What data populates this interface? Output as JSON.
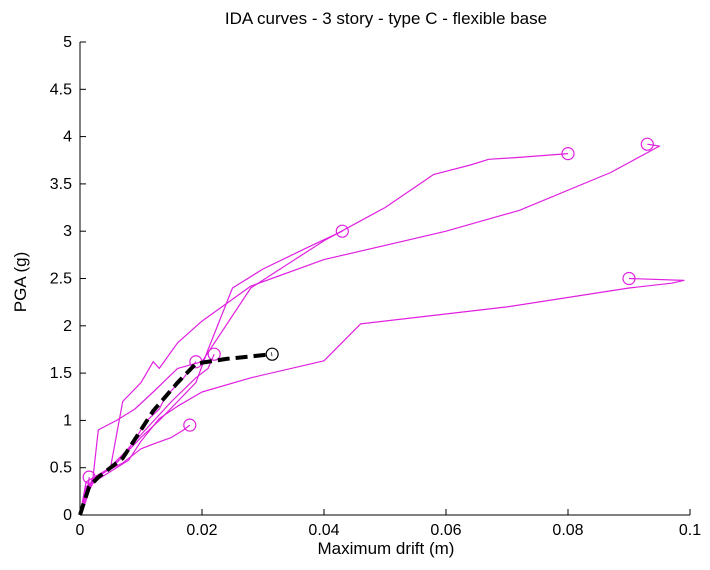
{
  "chart_data": {
    "type": "line",
    "title": "IDA curves - 3 story - type C - flexible base",
    "xlabel": "Maximum drift (m)",
    "ylabel": "PGA (g)",
    "xlim": [
      0,
      0.1
    ],
    "ylim": [
      0,
      5
    ],
    "xticks": [
      0,
      0.02,
      0.04,
      0.06,
      0.08,
      0.1
    ],
    "xtick_labels": [
      "0",
      "0.02",
      "0.04",
      "0.06",
      "0.08",
      "0.1"
    ],
    "yticks": [
      0,
      0.5,
      1,
      1.5,
      2,
      2.5,
      3,
      3.5,
      4,
      4.5,
      5
    ],
    "ytick_labels": [
      "0",
      "0.5",
      "1",
      "1.5",
      "2",
      "2.5",
      "3",
      "3.5",
      "4",
      "4.5",
      "5"
    ],
    "grid": false,
    "colors": {
      "records": "#e020e0",
      "median": "#000000",
      "axis": "#000000"
    },
    "series": [
      {
        "color": "#e020e0",
        "style": "solid",
        "points": [
          [
            0,
            0
          ],
          [
            0.0005,
            0.1
          ],
          [
            0.001,
            0.2
          ],
          [
            0.002,
            0.32
          ],
          [
            0.003,
            0.9
          ],
          [
            0.006,
            1.0
          ],
          [
            0.009,
            1.12
          ],
          [
            0.012,
            1.3
          ],
          [
            0.016,
            1.55
          ],
          [
            0.02,
            1.62
          ],
          [
            0.028,
            2.4
          ],
          [
            0.04,
            2.9
          ],
          [
            0.05,
            3.25
          ],
          [
            0.058,
            3.6
          ],
          [
            0.064,
            3.7
          ],
          [
            0.067,
            3.76
          ],
          [
            0.072,
            3.78
          ],
          [
            0.08,
            3.82
          ]
        ],
        "marker": [
          0.08,
          3.82
        ]
      },
      {
        "color": "#e020e0",
        "style": "solid",
        "points": [
          [
            0,
            0
          ],
          [
            0.001,
            0.2
          ],
          [
            0.002,
            0.38
          ],
          [
            0.005,
            0.5
          ],
          [
            0.007,
            1.2
          ],
          [
            0.01,
            1.4
          ],
          [
            0.012,
            1.62
          ],
          [
            0.013,
            1.55
          ],
          [
            0.016,
            1.82
          ],
          [
            0.02,
            2.05
          ],
          [
            0.028,
            2.42
          ],
          [
            0.04,
            2.7
          ],
          [
            0.06,
            3.0
          ],
          [
            0.072,
            3.22
          ],
          [
            0.087,
            3.62
          ],
          [
            0.095,
            3.9
          ],
          [
            0.093,
            3.92
          ]
        ],
        "marker": [
          0.093,
          3.92
        ]
      },
      {
        "color": "#e020e0",
        "style": "solid",
        "points": [
          [
            0,
            0
          ],
          [
            0.001,
            0.25
          ],
          [
            0.003,
            0.4
          ],
          [
            0.006,
            0.55
          ],
          [
            0.01,
            0.82
          ],
          [
            0.013,
            1.0
          ],
          [
            0.016,
            1.2
          ],
          [
            0.019,
            1.4
          ],
          [
            0.021,
            1.75
          ],
          [
            0.025,
            2.4
          ],
          [
            0.03,
            2.6
          ],
          [
            0.038,
            2.85
          ],
          [
            0.043,
            3.0
          ]
        ],
        "marker": [
          0.043,
          3.0
        ]
      },
      {
        "color": "#e020e0",
        "style": "solid",
        "points": [
          [
            0,
            0
          ],
          [
            0.001,
            0.3
          ],
          [
            0.003,
            0.38
          ],
          [
            0.006,
            0.5
          ],
          [
            0.008,
            0.58
          ],
          [
            0.01,
            0.78
          ],
          [
            0.013,
            1.02
          ],
          [
            0.016,
            1.15
          ],
          [
            0.02,
            1.3
          ],
          [
            0.028,
            1.45
          ],
          [
            0.04,
            1.63
          ],
          [
            0.046,
            2.02
          ],
          [
            0.07,
            2.2
          ],
          [
            0.09,
            2.4
          ],
          [
            0.097,
            2.45
          ],
          [
            0.099,
            2.48
          ],
          [
            0.09,
            2.5
          ]
        ],
        "marker": [
          0.09,
          2.5
        ]
      },
      {
        "color": "#e020e0",
        "style": "solid",
        "points": [
          [
            0,
            0
          ],
          [
            0.001,
            0.35
          ],
          [
            0.005,
            0.5
          ],
          [
            0.01,
            0.85
          ],
          [
            0.015,
            1.2
          ],
          [
            0.019,
            1.45
          ],
          [
            0.021,
            1.55
          ],
          [
            0.022,
            1.7
          ]
        ],
        "marker": [
          0.022,
          1.7
        ]
      },
      {
        "color": "#e020e0",
        "style": "solid",
        "points": [
          [
            0,
            0
          ],
          [
            0.001,
            0.28
          ],
          [
            0.003,
            0.42
          ],
          [
            0.007,
            0.55
          ],
          [
            0.01,
            0.7
          ],
          [
            0.012,
            0.75
          ],
          [
            0.015,
            0.82
          ],
          [
            0.017,
            0.9
          ],
          [
            0.018,
            0.95
          ]
        ],
        "marker": [
          0.018,
          0.95
        ]
      },
      {
        "color": "#e020e0",
        "style": "solid",
        "points": [
          [
            0,
            0
          ],
          [
            0.001,
            0.2
          ],
          [
            0.002,
            0.38
          ],
          [
            0.004,
            0.45
          ],
          [
            0.008,
            0.7
          ],
          [
            0.011,
            1.0
          ],
          [
            0.013,
            1.12
          ],
          [
            0.014,
            1.25
          ],
          [
            0.017,
            1.45
          ],
          [
            0.019,
            1.62
          ]
        ],
        "marker": [
          0.019,
          1.62
        ]
      },
      {
        "color": "#e020e0",
        "style": "solid",
        "points": [
          [
            0,
            0
          ],
          [
            0.001,
            0.15
          ],
          [
            0.0015,
            0.4
          ]
        ],
        "marker": [
          0.0015,
          0.4
        ]
      },
      {
        "color": "#000000",
        "style": "dashed",
        "points": [
          [
            0,
            0
          ],
          [
            0.0005,
            0.1
          ],
          [
            0.0015,
            0.3
          ],
          [
            0.003,
            0.4
          ],
          [
            0.007,
            0.6
          ],
          [
            0.009,
            0.8
          ],
          [
            0.012,
            1.1
          ],
          [
            0.016,
            1.4
          ],
          [
            0.019,
            1.6
          ],
          [
            0.024,
            1.65
          ],
          [
            0.0315,
            1.7
          ]
        ],
        "marker": [
          0.0315,
          1.7
        ]
      }
    ]
  }
}
